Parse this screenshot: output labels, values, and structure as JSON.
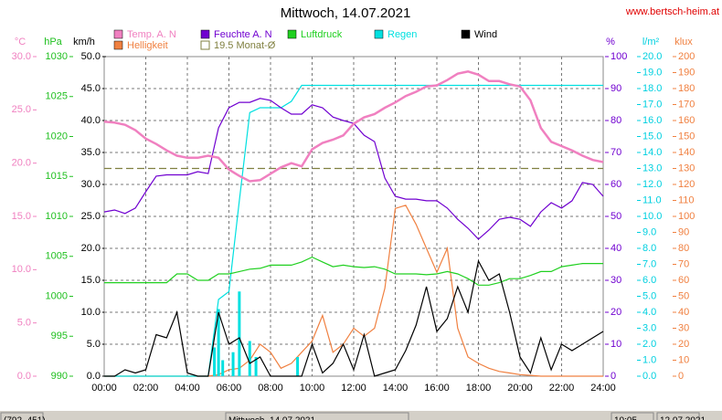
{
  "chart_data": {
    "type": "line",
    "title": "Mittwoch, 14.07.2021",
    "site": "www.bertsch-heim.at",
    "xlim": [
      0,
      24
    ],
    "xticks": [
      {
        "value": 0,
        "label": "00:00"
      },
      {
        "value": 2,
        "label": "02:00"
      },
      {
        "value": 4,
        "label": "04:00"
      },
      {
        "value": 6,
        "label": "06:00"
      },
      {
        "value": 8,
        "label": "08:00"
      },
      {
        "value": 10,
        "label": "10:00"
      },
      {
        "value": 12,
        "label": "12:00"
      },
      {
        "value": 14,
        "label": "14:00"
      },
      {
        "value": 16,
        "label": "16:00"
      },
      {
        "value": 18,
        "label": "18:00"
      },
      {
        "value": 20,
        "label": "20:00"
      },
      {
        "value": 22,
        "label": "22:00"
      },
      {
        "value": 24,
        "label": "24:00"
      }
    ],
    "grid": true,
    "axes": [
      {
        "label": "°C",
        "color": "#f080c0",
        "lim": [
          0,
          30
        ],
        "ticks": [
          {
            "value": 0,
            "label": "0.0"
          },
          {
            "value": 5,
            "label": "5.0"
          },
          {
            "value": 10,
            "label": "10.0"
          },
          {
            "value": 15,
            "label": "15.0"
          },
          {
            "value": 20,
            "label": "20.0"
          },
          {
            "value": 25,
            "label": "25.0"
          },
          {
            "value": 30,
            "label": "30.0"
          }
        ]
      },
      {
        "label": "hPa",
        "color": "#20c020",
        "lim": [
          990,
          1030
        ],
        "ticks": [
          990,
          995,
          1000,
          1005,
          1010,
          1015,
          1020,
          1025,
          1030
        ]
      },
      {
        "label": "km/h",
        "color": "#000000",
        "lim": [
          0,
          50
        ],
        "ticks": [
          {
            "value": 0,
            "label": "0.0"
          },
          {
            "value": 5,
            "label": "5.0"
          },
          {
            "value": 10,
            "label": "10.0"
          },
          {
            "value": 15,
            "label": "15.0"
          },
          {
            "value": 20,
            "label": "20.0"
          },
          {
            "value": 25,
            "label": "25.0"
          },
          {
            "value": 30,
            "label": "30.0"
          },
          {
            "value": 35,
            "label": "35.0"
          },
          {
            "value": 40,
            "label": "40.0"
          },
          {
            "value": 45,
            "label": "45.0"
          },
          {
            "value": 50,
            "label": "50.0"
          }
        ]
      },
      {
        "label": "%",
        "color": "#7000d0",
        "lim": [
          0,
          100
        ],
        "ticks": [
          0,
          10,
          20,
          30,
          40,
          50,
          60,
          70,
          80,
          90,
          100
        ]
      },
      {
        "label": "l/m²",
        "color": "#00d0e0",
        "lim": [
          0,
          20
        ],
        "ticks": [
          {
            "value": 0,
            "label": "0.0"
          },
          {
            "value": 1,
            "label": "1.0"
          },
          {
            "value": 2,
            "label": "2.0"
          },
          {
            "value": 3,
            "label": "3.0"
          },
          {
            "value": 4,
            "label": "4.0"
          },
          {
            "value": 5,
            "label": "5.0"
          },
          {
            "value": 6,
            "label": "6.0"
          },
          {
            "value": 7,
            "label": "7.0"
          },
          {
            "value": 8,
            "label": "8.0"
          },
          {
            "value": 9,
            "label": "9.0"
          },
          {
            "value": 10,
            "label": "10.0"
          },
          {
            "value": 11,
            "label": "11.0"
          },
          {
            "value": 12,
            "label": "12.0"
          },
          {
            "value": 13,
            "label": "13.0"
          },
          {
            "value": 14,
            "label": "14.0"
          },
          {
            "value": 15,
            "label": "15.0"
          },
          {
            "value": 16,
            "label": "16.0"
          },
          {
            "value": 17,
            "label": "17.0"
          },
          {
            "value": 18,
            "label": "18.0"
          },
          {
            "value": 19,
            "label": "19.0"
          },
          {
            "value": 20,
            "label": "20.0"
          }
        ]
      },
      {
        "label": "klux",
        "color": "#f08040",
        "lim": [
          0,
          200
        ],
        "ticks": [
          0,
          10,
          20,
          30,
          40,
          50,
          60,
          70,
          80,
          90,
          100,
          110,
          120,
          130,
          140,
          150,
          160,
          170,
          180,
          190,
          200
        ]
      }
    ],
    "x": [
      0,
      0.5,
      1,
      1.5,
      2,
      2.5,
      3,
      3.5,
      4,
      4.5,
      5,
      5.5,
      6,
      6.5,
      7,
      7.5,
      8,
      8.5,
      9,
      9.5,
      10,
      10.5,
      11,
      11.5,
      12,
      12.5,
      13,
      13.5,
      14,
      14.5,
      15,
      15.5,
      16,
      16.5,
      17,
      17.5,
      18,
      18.5,
      19,
      19.5,
      20,
      20.5,
      21,
      21.5,
      22,
      22.5,
      23,
      23.5,
      24
    ],
    "series": [
      {
        "name": "Temp. A. N",
        "color": "#f080c0",
        "axis": 0,
        "values": [
          23.9,
          23.8,
          23.6,
          23.1,
          22.3,
          21.8,
          21.2,
          20.7,
          20.5,
          20.5,
          20.7,
          20.5,
          19.4,
          18.8,
          18.3,
          18.4,
          19.0,
          19.6,
          20.0,
          19.7,
          21.3,
          21.9,
          22.2,
          22.6,
          23.7,
          24.3,
          24.6,
          25.2,
          25.7,
          26.3,
          26.7,
          27.2,
          27.3,
          27.8,
          28.4,
          28.6,
          28.3,
          27.7,
          27.7,
          27.4,
          27.2,
          25.9,
          23.3,
          22.0,
          21.6,
          21.2,
          20.7,
          20.3,
          20.1
        ]
      },
      {
        "name": "Helligkeit",
        "color": "#f08040",
        "axis": 5,
        "values": [
          0,
          0,
          0,
          0,
          0,
          0,
          0,
          0,
          0,
          0,
          0,
          1,
          4,
          5,
          10,
          20,
          15,
          5,
          8,
          15,
          22,
          38,
          15,
          20,
          30,
          25,
          30,
          55,
          105,
          107,
          95,
          80,
          65,
          80,
          30,
          12,
          8,
          5,
          3,
          2,
          1,
          0.5,
          0,
          0,
          0,
          0,
          0,
          0,
          0
        ]
      },
      {
        "name": "Feuchte A. N",
        "color": "#7000d0",
        "axis": 3,
        "values": [
          51.4,
          52,
          50.9,
          52.6,
          57.7,
          62.6,
          63,
          63,
          63,
          64,
          63.4,
          77.7,
          84,
          85.7,
          85.7,
          86.9,
          86.3,
          84,
          82,
          82,
          84.9,
          84,
          81.1,
          80,
          79.1,
          75.4,
          73.4,
          62,
          56.3,
          55.4,
          55.4,
          54.9,
          54.9,
          52.6,
          49.1,
          46.3,
          42.9,
          45.7,
          49.1,
          49.7,
          49.1,
          46.9,
          51.4,
          54.3,
          52.6,
          54.9,
          60.6,
          60,
          56.3
        ]
      },
      {
        "name": "Luftdruck",
        "color": "#20d020",
        "axis": 1,
        "values": [
          1001.7,
          1001.7,
          1001.7,
          1001.7,
          1001.7,
          1001.7,
          1001.7,
          1002.8,
          1002.8,
          1002,
          1002,
          1002.8,
          1002.8,
          1003.1,
          1003.4,
          1003.5,
          1003.9,
          1003.9,
          1003.9,
          1004.3,
          1004.9,
          1004.3,
          1003.7,
          1003.9,
          1003.7,
          1003.6,
          1003.7,
          1003.4,
          1002.8,
          1002.8,
          1002.8,
          1002.7,
          1002.8,
          1003.1,
          1002.8,
          1002.2,
          1001.4,
          1001.4,
          1001.7,
          1002.2,
          1002.2,
          1002.6,
          1003.1,
          1003.1,
          1003.7,
          1003.9,
          1004.1,
          1004.1,
          1004.1
        ]
      },
      {
        "name": "Regen",
        "color": "#00e0e0",
        "axis": 4,
        "values": [
          0,
          0,
          0,
          0,
          0,
          0,
          0,
          0,
          0,
          0,
          0,
          4.8,
          5.3,
          11,
          16.5,
          16.8,
          16.8,
          16.8,
          17.2,
          18.2,
          18.2,
          18.2,
          18.2,
          18.2,
          18.2,
          18.2,
          18.2,
          18.2,
          18.2,
          18.2,
          18.2,
          18.2,
          18.2,
          18.2,
          18.2,
          18.2,
          18.2,
          18.2,
          18.2,
          18.2,
          18.2,
          18.2,
          18.2,
          18.2,
          18.2,
          18.2,
          18.2,
          18.2,
          18.2
        ],
        "bars": {
          "x": [
            5.3,
            5.5,
            5.7,
            6.2,
            6.5,
            7.0,
            7.3,
            9.3
          ],
          "values": [
            1.8,
            4.2,
            1.0,
            1.5,
            5.3,
            2.2,
            1.2,
            1.2
          ]
        }
      },
      {
        "name": "Wind",
        "color": "#000000",
        "axis": 2,
        "values": [
          0,
          0,
          1,
          0.5,
          1,
          6.5,
          6,
          10,
          0.5,
          0,
          0,
          10,
          5,
          6,
          2,
          3,
          0,
          0,
          0,
          0,
          5,
          0.5,
          2,
          5,
          1,
          6.5,
          0,
          0.5,
          1,
          4,
          8,
          14,
          7,
          9,
          14,
          10,
          18,
          15,
          16,
          10,
          3,
          0.5,
          6,
          1,
          5,
          4,
          5,
          6,
          7
        ]
      }
    ],
    "reference": {
      "name": "19.5 Monat-Ø",
      "value": 19.5,
      "axis": 0,
      "color": "#808040"
    },
    "status": [
      "(792, 451)",
      "Mittwoch, 14.07.2021",
      "10:05",
      "12.07.2021"
    ]
  }
}
